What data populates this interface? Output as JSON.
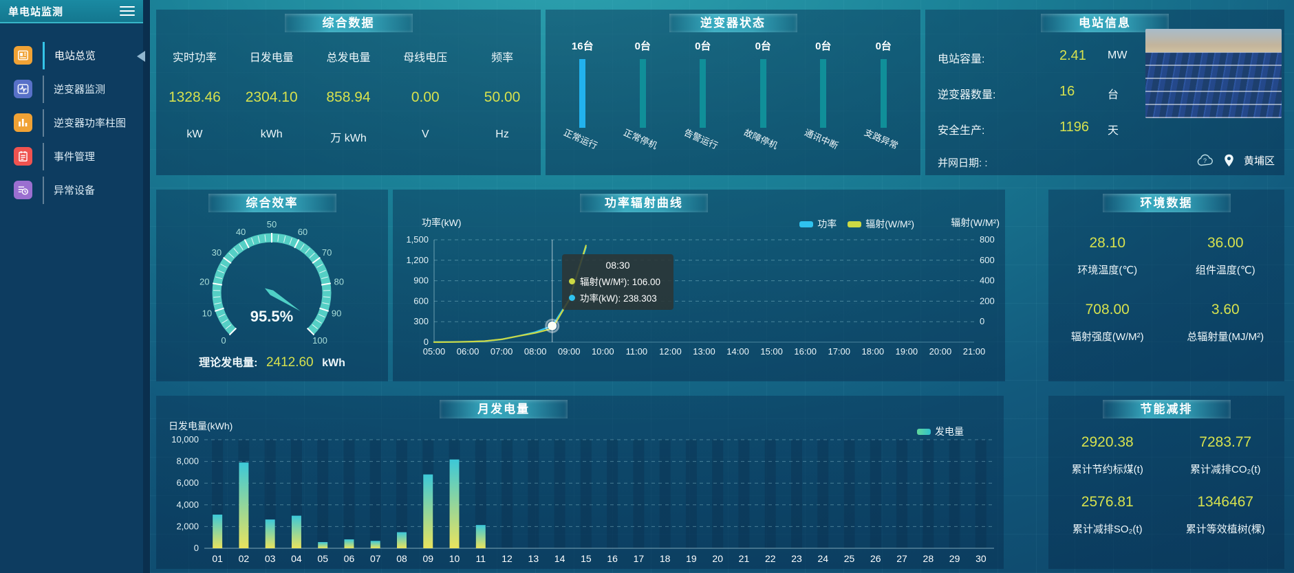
{
  "app": {
    "title": "单电站监测",
    "location": "黄埔区"
  },
  "colors": {
    "accent_yellow": "#d6e14e",
    "title_teal": "#3eb9cd",
    "sidebar_bg": "#0d3c60",
    "header_teal": "#1a8aa2",
    "gauge_teal": "#55cfc5",
    "power_cyan": "#2fc2ee",
    "radiation_yellow": "#ccd944"
  },
  "sidebar": {
    "items": [
      {
        "label": "电站总览",
        "icon": "document-icon",
        "color": "#f0a235",
        "active": true
      },
      {
        "label": "逆变器监测",
        "icon": "waveform-icon",
        "color": "#5871c8",
        "active": false
      },
      {
        "label": "逆变器功率柱图",
        "icon": "bar-chart-icon",
        "color": "#f0a235",
        "active": false
      },
      {
        "label": "事件管理",
        "icon": "notebook-icon",
        "color": "#ef5350",
        "active": false
      },
      {
        "label": "异常设备",
        "icon": "device-list-icon",
        "color": "#9b6fd0",
        "active": false
      }
    ]
  },
  "summary": {
    "title": "综合数据",
    "metrics": [
      {
        "label": "实时功率",
        "value": "1328.46",
        "unit": "kW"
      },
      {
        "label": "日发电量",
        "value": "2304.10",
        "unit": "kWh"
      },
      {
        "label": "总发电量",
        "value": "858.94",
        "unit": "万 kWh"
      },
      {
        "label": "母线电压",
        "value": "0.00",
        "unit": "V"
      },
      {
        "label": "频率",
        "value": "50.00",
        "unit": "Hz"
      }
    ]
  },
  "inverter_status": {
    "title": "逆变器状态",
    "bars": [
      {
        "count": "16台",
        "label": "正常运行",
        "color": "#22b2ee"
      },
      {
        "count": "0台",
        "label": "正常停机",
        "color": "#108f99"
      },
      {
        "count": "0台",
        "label": "告警运行",
        "color": "#108f99"
      },
      {
        "count": "0台",
        "label": "故障停机",
        "color": "#108f99"
      },
      {
        "count": "0台",
        "label": "通讯中断",
        "color": "#108f99"
      },
      {
        "count": "0台",
        "label": "支路异常",
        "color": "#108f99"
      }
    ]
  },
  "station_info": {
    "title": "电站信息",
    "rows": [
      {
        "label": "电站容量:",
        "value": "2.41",
        "unit": "MW"
      },
      {
        "label": "逆变器数量:",
        "value": "16",
        "unit": "台"
      },
      {
        "label": "安全生产:",
        "value": "1196",
        "unit": "天"
      }
    ],
    "grid_date_label": "并网日期: :"
  },
  "efficiency": {
    "title": "综合效率",
    "theory_label": "理论发电量:",
    "theory_value": "2412.60",
    "theory_unit": "kWh"
  },
  "environment": {
    "title": "环境数据",
    "metrics": [
      {
        "value": "28.10",
        "label": "环境温度(℃)"
      },
      {
        "value": "36.00",
        "label": "组件温度(℃)"
      },
      {
        "value": "708.00",
        "label": "辐射强度(W/M²)"
      },
      {
        "value": "3.60",
        "label": "总辐射量(MJ/M²)"
      }
    ]
  },
  "saving": {
    "title": "节能减排",
    "metrics": [
      {
        "value": "2920.38",
        "label": "累计节约标煤(t)"
      },
      {
        "value": "7283.77",
        "label": "累计减排CO₂(t)"
      },
      {
        "value": "2576.81",
        "label": "累计减排SO₂(t)"
      },
      {
        "value": "1346467",
        "label": "累计等效植树(棵)"
      }
    ]
  },
  "chart_data": [
    {
      "id": "efficiency_gauge",
      "type": "gauge",
      "title": "综合效率",
      "min": 0,
      "max": 100,
      "value": 95.5,
      "unit": "%",
      "ticks": [
        0,
        10,
        20,
        30,
        40,
        50,
        60,
        70,
        80,
        90,
        100
      ],
      "arc_color": "#55cfc5",
      "start_angle": 225,
      "end_angle": -45
    },
    {
      "id": "power_radiation",
      "type": "line",
      "title": "功率辐射曲线",
      "x": [
        "05:00",
        "06:00",
        "07:00",
        "08:00",
        "09:00",
        "10:00",
        "11:00",
        "12:00",
        "13:00",
        "14:00",
        "15:00",
        "16:00",
        "17:00",
        "18:00",
        "19:00",
        "20:00",
        "21:00"
      ],
      "left_axis": {
        "name": "功率(kW)",
        "min": 0,
        "max": 1500,
        "ticks": [
          "1,500",
          "1,200",
          "900",
          "600",
          "300",
          "0"
        ]
      },
      "right_axis": {
        "name": "辐射(W/M²)",
        "min": 0,
        "max": 800,
        "ticks": [
          "800",
          "600",
          "400",
          "200",
          "0"
        ]
      },
      "series": [
        {
          "name": "功率",
          "axis": "left",
          "unit": "kW",
          "color": "#2fc2ee",
          "points": [
            [
              "05:00",
              2
            ],
            [
              "05:30",
              3
            ],
            [
              "06:00",
              6
            ],
            [
              "06:30",
              14
            ],
            [
              "07:00",
              40
            ],
            [
              "07:30",
              90
            ],
            [
              "08:00",
              148
            ],
            [
              "08:30",
              238.303
            ],
            [
              "09:00",
              620
            ],
            [
              "09:30",
              1390
            ]
          ]
        },
        {
          "name": "辐射(W/M²)",
          "axis": "right",
          "unit": "W/M²",
          "color": "#ccd944",
          "points": [
            [
              "05:00",
              0
            ],
            [
              "05:30",
              1
            ],
            [
              "06:00",
              3
            ],
            [
              "06:30",
              8
            ],
            [
              "07:00",
              22
            ],
            [
              "07:30",
              48
            ],
            [
              "08:00",
              72
            ],
            [
              "08:30",
              106
            ],
            [
              "09:00",
              330
            ],
            [
              "09:30",
              755
            ]
          ]
        }
      ],
      "grid": true,
      "legend_position": "top-right",
      "tooltip": {
        "time": "08:30",
        "rows": [
          {
            "color": "#ccd944",
            "text": "辐射(W/M²): 106.00"
          },
          {
            "color": "#2fc2ee",
            "text": "功率(kW): 238.303"
          }
        ],
        "marker": {
          "x": "08:30",
          "value": 238.303,
          "axis": "left"
        }
      }
    },
    {
      "id": "monthly_generation",
      "type": "bar",
      "title": "月发电量",
      "ylabel": "日发电量(kWh)",
      "legend": "发电量",
      "ylim": [
        0,
        10000
      ],
      "yticks": [
        "10,000",
        "8,000",
        "6,000",
        "4,000",
        "2,000",
        "0"
      ],
      "categories": [
        "01",
        "02",
        "03",
        "04",
        "05",
        "06",
        "07",
        "08",
        "09",
        "10",
        "11",
        "12",
        "13",
        "14",
        "15",
        "16",
        "17",
        "18",
        "19",
        "20",
        "21",
        "22",
        "23",
        "24",
        "25",
        "26",
        "27",
        "28",
        "29",
        "30"
      ],
      "values": [
        3100,
        7900,
        2650,
        3000,
        570,
        820,
        680,
        1480,
        6800,
        8180,
        2140,
        0,
        0,
        0,
        0,
        0,
        0,
        0,
        0,
        0,
        0,
        0,
        0,
        0,
        0,
        0,
        0,
        0,
        0,
        0
      ],
      "bar_gradient": [
        "#3cc8d8",
        "#e9e35e"
      ],
      "grid": true
    }
  ]
}
